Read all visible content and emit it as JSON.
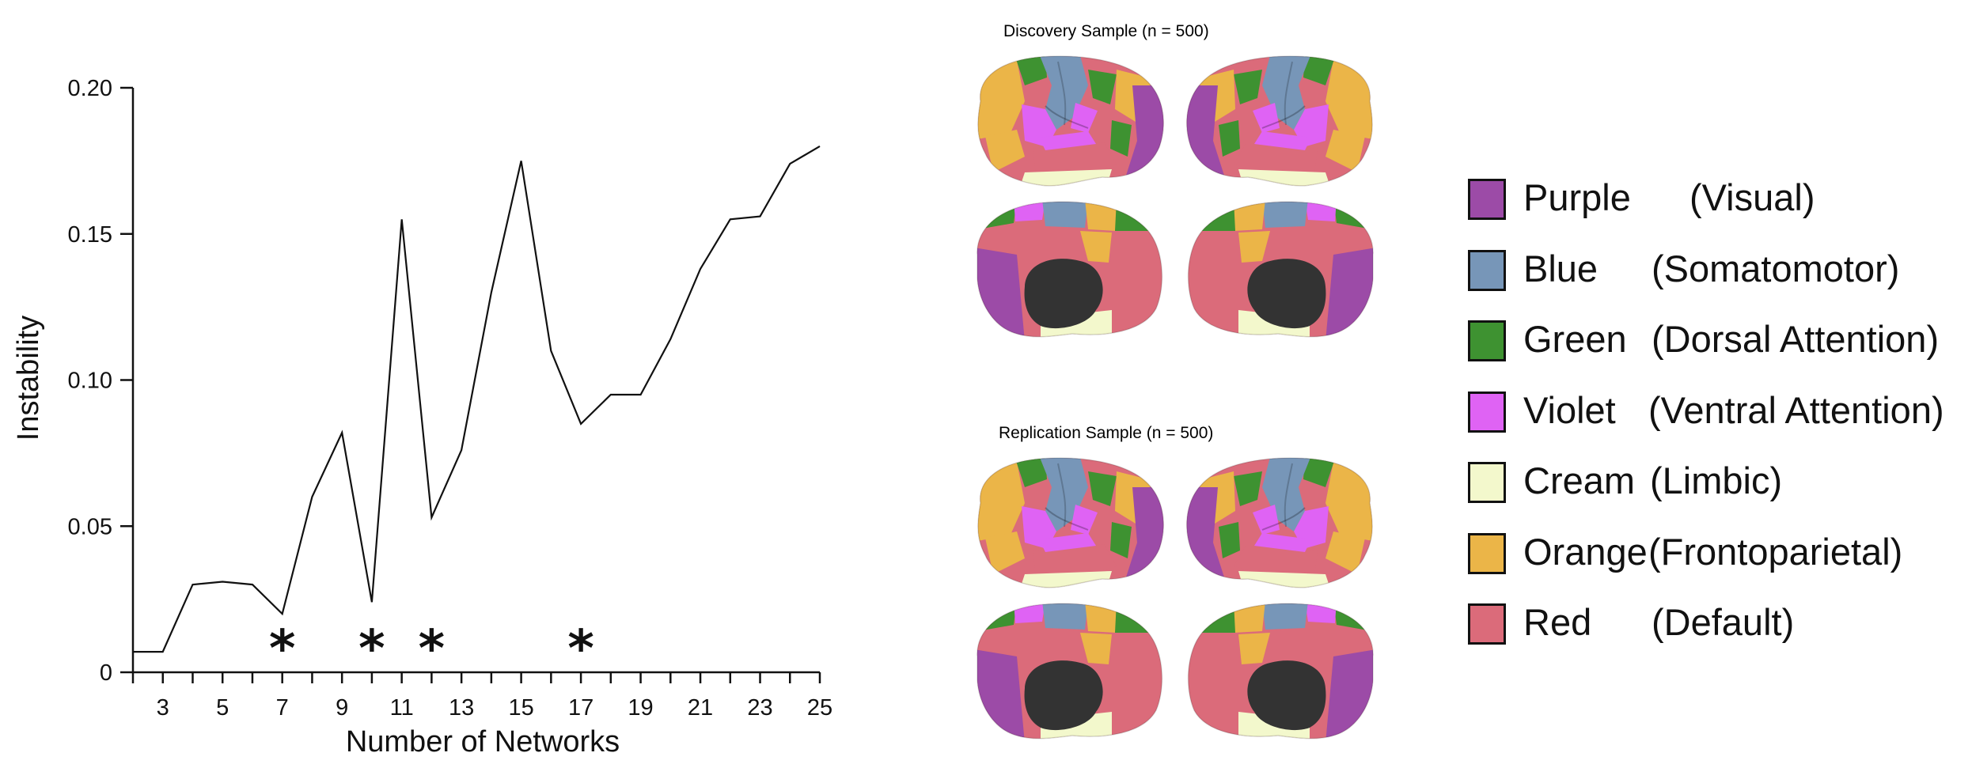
{
  "chart_data": {
    "type": "line",
    "xlabel": "Number of Networks",
    "ylabel": "Instability",
    "xlim": [
      2,
      25
    ],
    "ylim": [
      0,
      0.2
    ],
    "x_ticks": [
      "3",
      "5",
      "7",
      "9",
      "11",
      "13",
      "15",
      "17",
      "19",
      "21",
      "23",
      "25"
    ],
    "y_ticks": [
      "0",
      "0.05",
      "0.10",
      "0.15",
      "0.20"
    ],
    "series": [
      {
        "x": [
          2,
          3,
          4,
          5,
          6,
          7,
          8,
          9,
          10,
          11,
          12,
          13,
          14,
          15,
          16,
          17,
          18,
          19,
          20,
          21,
          22,
          23,
          24,
          25
        ],
        "y": [
          0.007,
          0.007,
          0.03,
          0.031,
          0.03,
          0.02,
          0.06,
          0.082,
          0.024,
          0.155,
          0.053,
          0.076,
          0.13,
          0.175,
          0.11,
          0.085,
          0.095,
          0.095,
          0.114,
          0.138,
          0.155,
          0.156,
          0.174,
          0.18
        ]
      }
    ],
    "markers": [
      {
        "x": 7,
        "symbol": "*"
      },
      {
        "x": 10,
        "symbol": "*"
      },
      {
        "x": 12,
        "symbol": "*"
      },
      {
        "x": 17,
        "symbol": "*"
      }
    ],
    "grid": false,
    "legend_placement": "right"
  },
  "samples": [
    {
      "title": "Discovery Sample (n = 500)"
    },
    {
      "title": "Replication Sample (n = 500)"
    }
  ],
  "legend": {
    "items": [
      {
        "name": "Purple",
        "desc": "(Visual)",
        "color": "#9C4BA7"
      },
      {
        "name": "Blue",
        "desc": "(Somatomotor)",
        "color": "#7796B8"
      },
      {
        "name": "Green",
        "desc": "(Dorsal Attention)",
        "color": "#3E9231"
      },
      {
        "name": "Violet",
        "desc": "(Ventral Attention)",
        "color": "#DF63F4"
      },
      {
        "name": "Cream",
        "desc": "(Limbic)",
        "color": "#F3F8CC"
      },
      {
        "name": "Orange",
        "desc": "(Frontoparietal)",
        "color": "#EBB548"
      },
      {
        "name": "Red",
        "desc": "(Default)",
        "color": "#DB6B7A"
      }
    ]
  },
  "colors": {
    "visual": "#9C4BA7",
    "somatomotor": "#7796B8",
    "dorsal_attention": "#3E9231",
    "ventral_attention": "#DF63F4",
    "limbic": "#F3F8CC",
    "frontoparietal": "#EBB548",
    "default": "#DB6B7A",
    "medial_wall": "#333333"
  }
}
